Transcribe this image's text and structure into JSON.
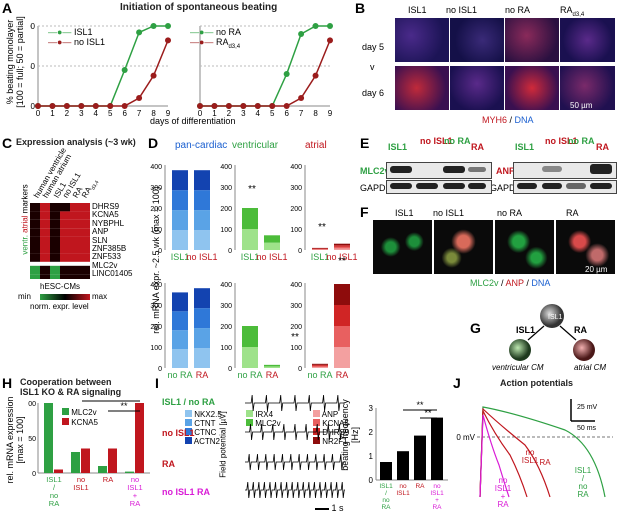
{
  "panels": {
    "A": "A",
    "B": "B",
    "C": "C",
    "D": "D",
    "E": "E",
    "F": "F",
    "G": "G",
    "H": "H",
    "I": "I",
    "J": "J"
  },
  "panelA": {
    "title": "Initiation of spontaneous beating",
    "ylabel1": "% beating monolayer",
    "ylabel2": "[100 = full; 50 = partial]",
    "xlabel": "days of differentiation",
    "legend_left": [
      "ISL1",
      "no ISL1"
    ],
    "legend_right": [
      "no RA",
      "RA"
    ],
    "legend_right_sub": "d3,4",
    "ticks_y": [
      "0",
      "50",
      "100"
    ],
    "ticks_x": [
      "0",
      "1",
      "2",
      "3",
      "4",
      "5",
      "6",
      "7",
      "8",
      "9"
    ]
  },
  "panelB": {
    "cols": [
      "ISL1",
      "no ISL1",
      "no RA",
      "RA"
    ],
    "col4_sub": "d3,4",
    "rows": [
      "day 5",
      "v",
      "day 6"
    ],
    "scalebar": "50 µm",
    "stain_a": "MYH6",
    "stain_sep": " / ",
    "stain_b": "DNA"
  },
  "panelC": {
    "title": "Expression analysis (~3 wk)",
    "col_labels": [
      "human ventricle",
      "human atrium",
      "ISL1",
      "no ISL1",
      "RA",
      "RA"
    ],
    "col_sub": "d3,4",
    "row_labels": [
      "DHRS9",
      "KCNA5",
      "NYBPHL",
      "ANP",
      "SLN",
      "ZNF385B",
      "ZNF533",
      "MLC2v",
      "LINC01405"
    ],
    "side_atrial": "atrial",
    "side_markers": "markers",
    "side_ventr": "ventr.",
    "bottom": "hESC-CMs",
    "scale_min": "min",
    "scale_max": "max",
    "scale_label": "norm. expr. level"
  },
  "panelD": {
    "groups": [
      "pan-cardiac",
      "ventricular",
      "atrial"
    ],
    "ylabel": "rel. mRNA expr. ~2.5 wk (max = 100)",
    "top_x": [
      [
        "ISL1",
        "no ISL1"
      ],
      [
        "ISL1",
        "no ISL1"
      ],
      [
        "ISL1",
        "no ISL1"
      ]
    ],
    "bottom_x": [
      [
        "no RA",
        "RA"
      ],
      [
        "no RA",
        "RA"
      ],
      [
        "no RA",
        "RA"
      ]
    ],
    "ticks": [
      "0",
      "100",
      "200",
      "300",
      "400"
    ],
    "legend_pan": [
      "NKX2.5",
      "CTNT",
      "CTNC",
      "ACTN2"
    ],
    "legend_vent": [
      "IRX4",
      "MLC2v"
    ],
    "legend_atr": [
      "ANP",
      "KCNA5",
      "DHRS9",
      "NR2F1"
    ],
    "sig": "**"
  },
  "panelE": {
    "left_cols": [
      "ISL1",
      "no ISL1",
      "no RA",
      "RA"
    ],
    "right_cols": [
      "ISL1",
      "no ISL1",
      "no RA",
      "RA"
    ],
    "left_rows": [
      "MLC2v",
      "GAPDH"
    ],
    "right_rows": [
      "ANP",
      "GAPDH"
    ]
  },
  "panelF": {
    "cols": [
      "ISL1",
      "no ISL1",
      "no RA",
      "RA"
    ],
    "stain_a": "MLC2v",
    "stain_sep1": " / ",
    "stain_b": "ANP",
    "stain_sep2": " / ",
    "stain_c": "DNA",
    "scalebar": "20 µm"
  },
  "panelG": {
    "top": "ISL1",
    "left_arrow": "ISL1",
    "right_arrow": "RA",
    "left_cell": "ventricular CM",
    "right_cell": "atrial CM"
  },
  "panelH": {
    "title": "Cooperation between",
    "title2": "ISL1 KO & RA signaling",
    "ylabel1": "rel. mRNA expression",
    "ylabel2": "[max = 100]",
    "legend": [
      "MLC2v",
      "KCNA5"
    ],
    "x": [
      "ISL1 / no RA",
      "no ISL1",
      "RA",
      "no ISL1 + RA"
    ],
    "ticks": [
      "0",
      "50",
      "100"
    ],
    "sig": [
      "*",
      "**"
    ]
  },
  "panelI": {
    "traces": [
      "ISL1 / no RA",
      "no ISL1",
      "RA",
      "no ISL1 RA"
    ],
    "ylabel": "Field potential [µV]",
    "timebar": "1 s",
    "bar_ylabel1": "beating frequency",
    "bar_ylabel2": "[Hz]",
    "bar_ticks": [
      "0",
      "1",
      "2",
      "3"
    ],
    "bar_x": [
      "ISL1 / no RA",
      "no ISL1",
      "RA",
      "no ISL1 + RA"
    ],
    "sig": [
      "**",
      "**"
    ]
  },
  "panelJ": {
    "title": "Action potentials",
    "scale_mv": "25 mV",
    "scale_ms": "50 ms",
    "zero": "0 mV",
    "labels": [
      "ISL1 / no RA",
      "no ISL1",
      "RA",
      "no ISL1 + RA"
    ]
  },
  "chart_data": [
    {
      "type": "line",
      "name": "A-left",
      "x": [
        0,
        1,
        2,
        3,
        4,
        5,
        6,
        7,
        8,
        9
      ],
      "series": [
        {
          "name": "ISL1",
          "values": [
            0,
            0,
            0,
            0,
            0,
            0,
            45,
            92,
            100,
            100
          ]
        },
        {
          "name": "no ISL1",
          "values": [
            0,
            0,
            0,
            0,
            0,
            0,
            0,
            10,
            38,
            82
          ]
        }
      ],
      "xlabel": "days of differentiation",
      "ylabel": "% beating monolayer",
      "ylim": [
        0,
        100
      ]
    },
    {
      "type": "line",
      "name": "A-right",
      "x": [
        0,
        1,
        2,
        3,
        4,
        5,
        6,
        7,
        8,
        9
      ],
      "series": [
        {
          "name": "no RA",
          "values": [
            0,
            0,
            0,
            0,
            0,
            0,
            40,
            90,
            100,
            100
          ]
        },
        {
          "name": "RA",
          "values": [
            0,
            0,
            0,
            0,
            0,
            0,
            0,
            10,
            38,
            82
          ]
        }
      ],
      "xlabel": "days of differentiation",
      "ylim": [
        0,
        100
      ]
    },
    {
      "type": "bar",
      "name": "H",
      "categories": [
        "ISL1 / no RA",
        "no ISL1",
        "RA",
        "no ISL1 + RA"
      ],
      "series": [
        {
          "name": "MLC2v",
          "values": [
            100,
            30,
            10,
            2
          ]
        },
        {
          "name": "KCNA5",
          "values": [
            5,
            35,
            35,
            100
          ]
        }
      ],
      "ylim": [
        0,
        100
      ]
    },
    {
      "type": "bar",
      "name": "I",
      "categories": [
        "ISL1 / no RA",
        "no ISL1",
        "RA",
        "no ISL1 + RA"
      ],
      "values": [
        0.75,
        1.2,
        1.85,
        2.6
      ],
      "ylabel": "beating frequency",
      "ylim": [
        0,
        3
      ]
    }
  ],
  "colors": {
    "green": "#2ea043",
    "darkred": "#9b1c1c",
    "red": "#c0161e",
    "blue": "#1a5fd0",
    "magenta": "#d91bd6"
  }
}
